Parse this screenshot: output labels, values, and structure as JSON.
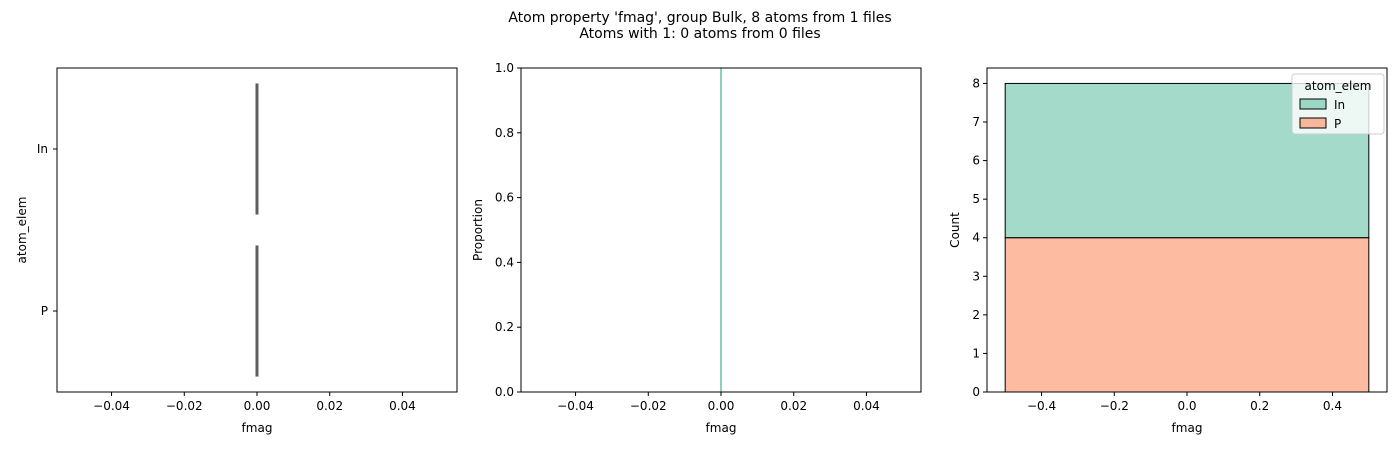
{
  "title_line1": "Atom property 'fmag', group Bulk, 8 atoms from 1 files",
  "title_line2": "Atoms with 1: 0 atoms from 0 files",
  "colors": {
    "In": "#66c2a5",
    "P": "#fc8d62",
    "box_line": "#5e5e5e"
  },
  "chart_data": [
    {
      "type": "box",
      "xlabel": "fmag",
      "ylabel": "atom_elem",
      "categories": [
        "In",
        "P"
      ],
      "xlim": [
        -0.055,
        0.055
      ],
      "xticks": [
        -0.04,
        -0.02,
        0.0,
        0.02,
        0.04
      ],
      "xtick_labels": [
        "−0.04",
        "−0.02",
        "0.00",
        "0.02",
        "0.04"
      ],
      "series": [
        {
          "category": "In",
          "values": [
            0,
            0,
            0,
            0
          ]
        },
        {
          "category": "P",
          "values": [
            0,
            0,
            0,
            0
          ]
        }
      ]
    },
    {
      "type": "line",
      "xlabel": "fmag",
      "ylabel": "Proportion",
      "xlim": [
        -0.055,
        0.055
      ],
      "ylim": [
        0,
        1
      ],
      "xticks": [
        -0.04,
        -0.02,
        0.0,
        0.02,
        0.04
      ],
      "xtick_labels": [
        "−0.04",
        "−0.02",
        "0.00",
        "0.02",
        "0.04"
      ],
      "yticks": [
        0.0,
        0.2,
        0.4,
        0.6,
        0.8,
        1.0
      ],
      "ytick_labels": [
        "0.0",
        "0.2",
        "0.4",
        "0.6",
        "0.8",
        "1.0"
      ],
      "series": [
        {
          "name": "In",
          "x": [
            0,
            0
          ],
          "y": [
            0,
            1
          ]
        }
      ]
    },
    {
      "type": "bar",
      "stacked": true,
      "xlabel": "fmag",
      "ylabel": "Count",
      "xlim": [
        -0.55,
        0.55
      ],
      "ylim": [
        0,
        8.4
      ],
      "bin_edges": [
        -0.5,
        0.5
      ],
      "xticks": [
        -0.4,
        -0.2,
        0.0,
        0.2,
        0.4
      ],
      "xtick_labels": [
        "−0.4",
        "−0.2",
        "0.0",
        "0.2",
        "0.4"
      ],
      "yticks": [
        0,
        1,
        2,
        3,
        4,
        5,
        6,
        7,
        8
      ],
      "ytick_labels": [
        "0",
        "1",
        "2",
        "3",
        "4",
        "5",
        "6",
        "7",
        "8"
      ],
      "legend": {
        "title": "atom_elem",
        "position": "top-right",
        "entries": [
          "In",
          "P"
        ]
      },
      "series": [
        {
          "name": "P",
          "values": [
            4
          ]
        },
        {
          "name": "In",
          "values": [
            4
          ]
        }
      ]
    }
  ]
}
